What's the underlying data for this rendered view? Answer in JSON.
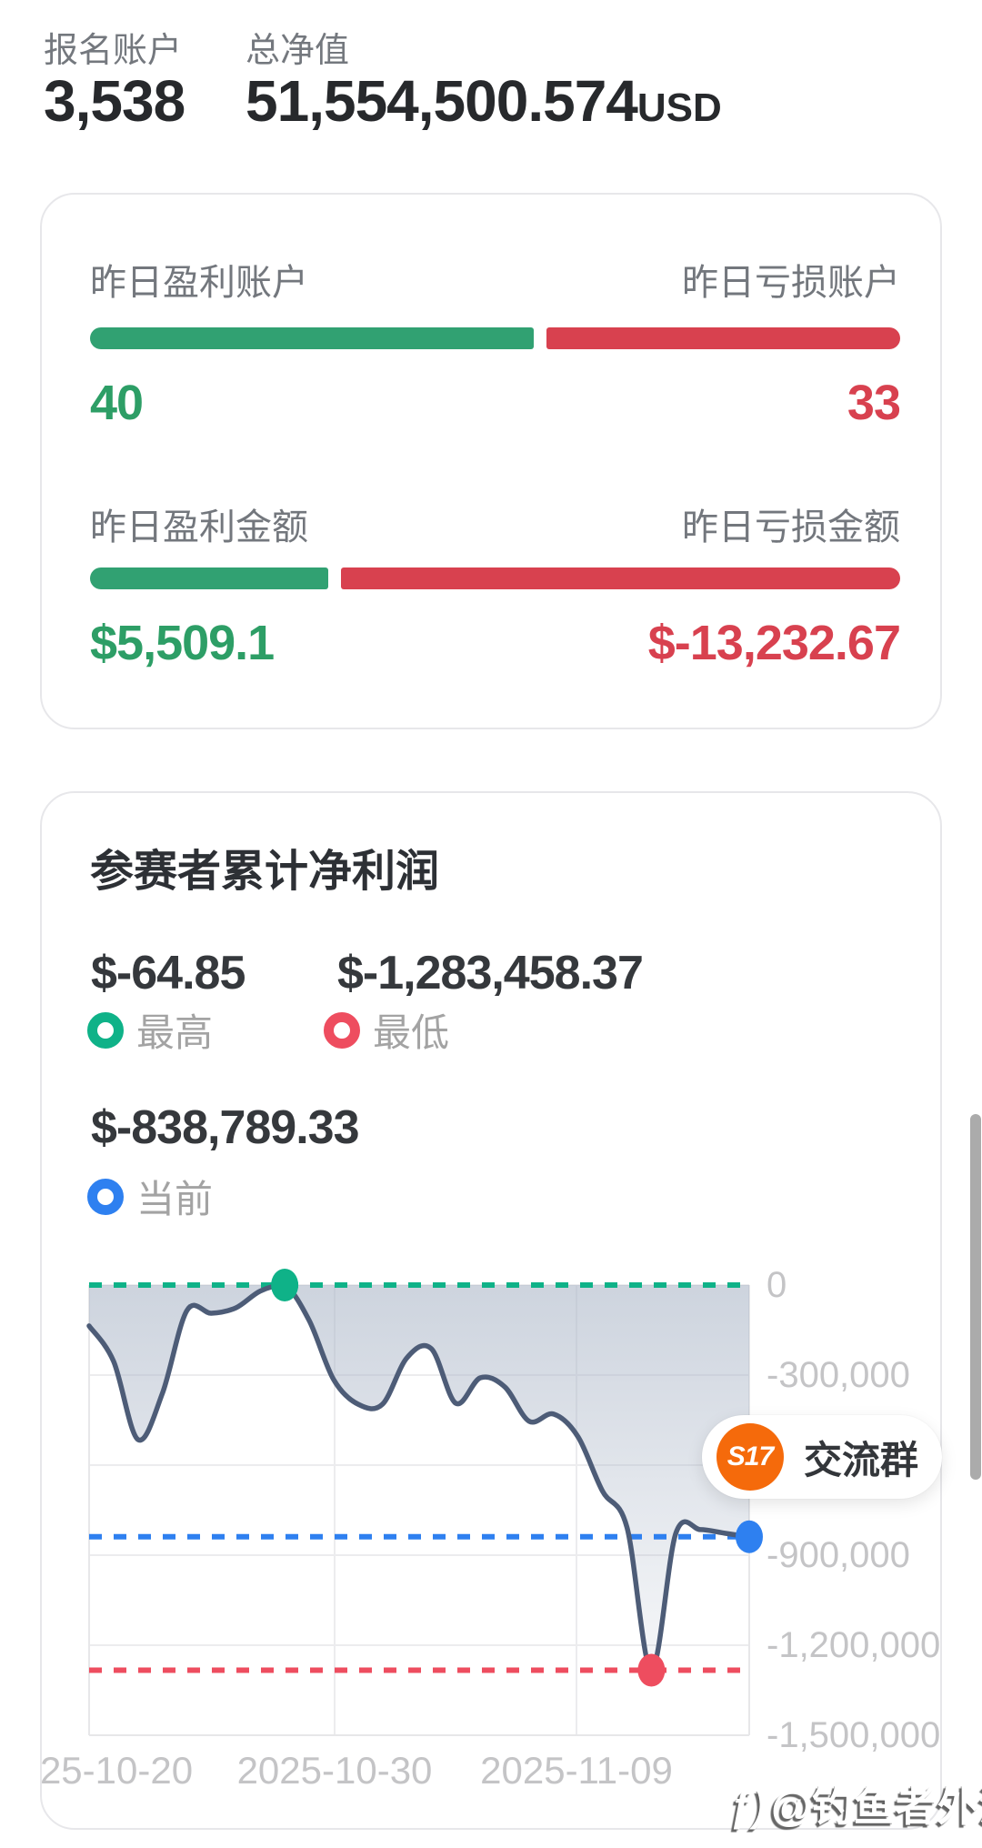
{
  "colors": {
    "bar_green": "#31a172",
    "bar_red": "#d8414f",
    "text_green": "#2d9e66",
    "text_red": "#d8414f",
    "chart_green": "#0fb288",
    "chart_red": "#ee4d5f",
    "chart_blue": "#2e80f0",
    "chart_line": "#4d5c77",
    "badge_orange": "#f56a0b"
  },
  "header": {
    "accounts_label": "报名账户",
    "accounts_value": "3,538",
    "net_label": "总净值",
    "net_value": "51,554,500.574",
    "net_unit": "USD"
  },
  "yesterday_card": {
    "accounts": {
      "win_label": "昨日盈利账户",
      "loss_label": "昨日亏损账户",
      "win_value": "40",
      "loss_value": "33",
      "win_pct": 54.8,
      "loss_pct": 45.2
    },
    "amounts": {
      "win_label": "昨日盈利金额",
      "loss_label": "昨日亏损金额",
      "win_value": "$5,509.1",
      "loss_value": "$-13,232.67",
      "win_pct": 29.4,
      "loss_pct": 70.6
    }
  },
  "profit_card": {
    "title": "参赛者累计净利润",
    "stats": [
      {
        "value": "$-64.85",
        "label": "最高"
      },
      {
        "value": "$-1,283,458.37",
        "label": "最低"
      },
      {
        "value": "$-838,789.33",
        "label": "当前"
      }
    ]
  },
  "chart_data": {
    "type": "area",
    "title": "参赛者累计净利润",
    "series": [
      {
        "name": "参赛者累计净利润",
        "unit": "USD",
        "values": [
          -136000,
          -254000,
          -515000,
          -360000,
          -85000,
          -94000,
          -76000,
          -20000,
          -65,
          -118000,
          -315000,
          -397000,
          -397000,
          -242000,
          -212000,
          -394000,
          -309000,
          -339000,
          -454000,
          -430000,
          -506000,
          -687000,
          -808000,
          -1283458,
          -827000,
          -815000,
          -827000,
          -838789
        ]
      }
    ],
    "ylim": [
      -1500000,
      0
    ],
    "grid": true,
    "y_ticks": [
      {
        "label": "0",
        "value": 0
      },
      {
        "label": "-300,000",
        "value": -300000
      },
      {
        "label": "-600,000",
        "value": -600000
      },
      {
        "label": "-900,000",
        "value": -900000
      },
      {
        "label": "-1,200,000",
        "value": -1200000
      },
      {
        "label": "-1,500,000",
        "value": -1500000
      }
    ],
    "x_tick_labels": [
      "25-10-20",
      "2025-10-30",
      "2025-11-09"
    ],
    "markers": {
      "max": {
        "index": 8,
        "value": -64.85
      },
      "min": {
        "index": 23,
        "value": -1283458.37
      },
      "current": {
        "index": 27,
        "value": -838789.33
      }
    },
    "reference_lines": [
      {
        "name": "max",
        "value": -65,
        "color": "#0fb288"
      },
      {
        "name": "current",
        "value": -838789,
        "color": "#2e80f0"
      },
      {
        "name": "min",
        "value": -1283458,
        "color": "#ee4d5f"
      }
    ]
  },
  "badge": {
    "circle_text": "S17",
    "label": "交流群"
  },
  "watermark": {
    "logo": "ƒ)",
    "text": "@钓鱼者外汇"
  }
}
